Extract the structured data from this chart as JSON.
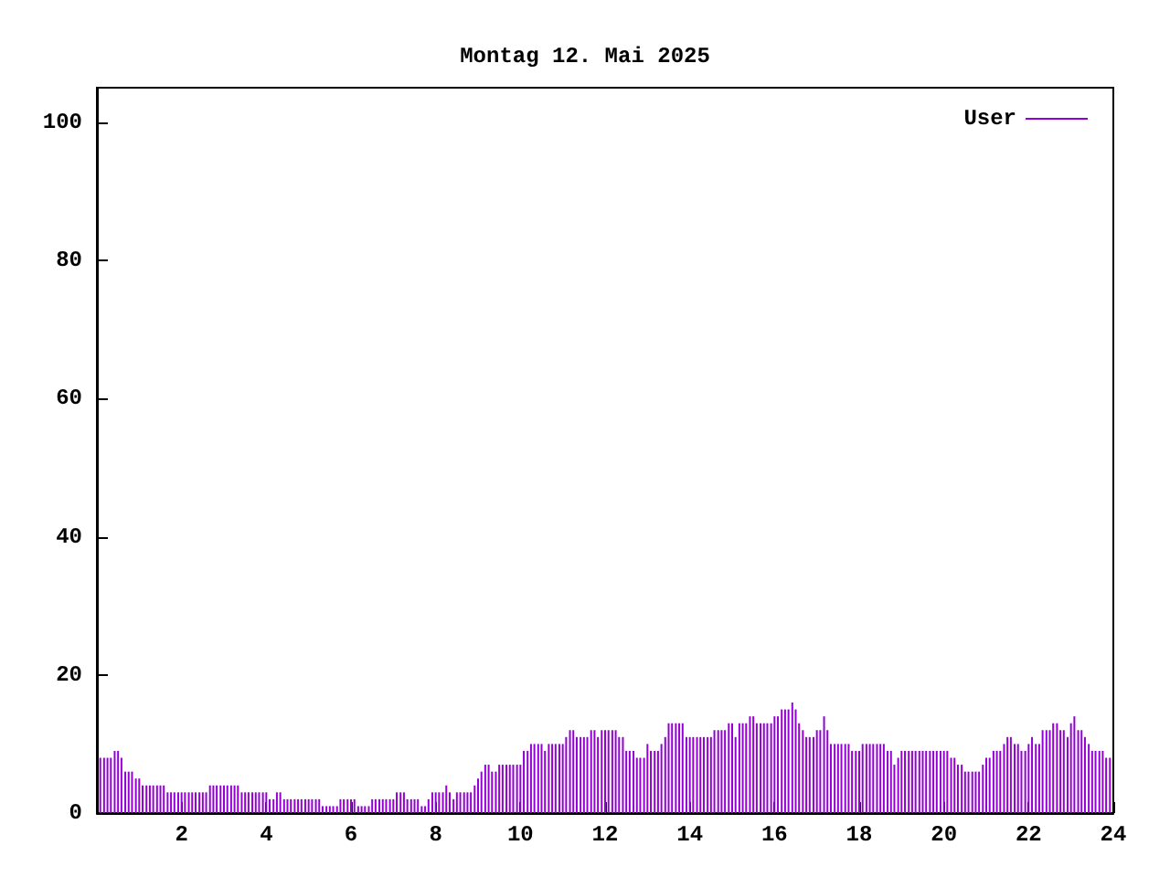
{
  "chart_data": {
    "type": "bar",
    "title": "Montag 12. Mai 2025",
    "x": [
      0.08,
      0.17,
      0.25,
      0.33,
      0.42,
      0.5,
      0.58,
      0.67,
      0.75,
      0.83,
      0.92,
      1,
      1.08,
      1.17,
      1.25,
      1.33,
      1.42,
      1.5,
      1.58,
      1.67,
      1.75,
      1.83,
      1.92,
      2,
      2.08,
      2.17,
      2.25,
      2.33,
      2.42,
      2.5,
      2.58,
      2.67,
      2.75,
      2.83,
      2.92,
      3,
      3.08,
      3.17,
      3.25,
      3.33,
      3.42,
      3.5,
      3.58,
      3.67,
      3.75,
      3.83,
      3.92,
      4,
      4.08,
      4.17,
      4.25,
      4.33,
      4.42,
      4.5,
      4.58,
      4.67,
      4.75,
      4.83,
      4.92,
      5,
      5.08,
      5.17,
      5.25,
      5.33,
      5.42,
      5.5,
      5.58,
      5.67,
      5.75,
      5.83,
      5.92,
      6,
      6.08,
      6.17,
      6.25,
      6.33,
      6.42,
      6.5,
      6.58,
      6.67,
      6.75,
      6.83,
      6.92,
      7,
      7.08,
      7.17,
      7.25,
      7.33,
      7.42,
      7.5,
      7.58,
      7.67,
      7.75,
      7.83,
      7.92,
      8,
      8.08,
      8.17,
      8.25,
      8.33,
      8.42,
      8.5,
      8.58,
      8.67,
      8.75,
      8.83,
      8.92,
      9,
      9.08,
      9.17,
      9.25,
      9.33,
      9.42,
      9.5,
      9.58,
      9.67,
      9.75,
      9.83,
      9.92,
      10,
      10.08,
      10.17,
      10.25,
      10.33,
      10.42,
      10.5,
      10.58,
      10.67,
      10.75,
      10.83,
      10.92,
      11,
      11.08,
      11.17,
      11.25,
      11.33,
      11.42,
      11.5,
      11.58,
      11.67,
      11.75,
      11.83,
      11.92,
      12,
      12.08,
      12.17,
      12.25,
      12.33,
      12.42,
      12.5,
      12.58,
      12.67,
      12.75,
      12.83,
      12.92,
      13,
      13.08,
      13.17,
      13.25,
      13.33,
      13.42,
      13.5,
      13.58,
      13.67,
      13.75,
      13.83,
      13.92,
      14,
      14.08,
      14.17,
      14.25,
      14.33,
      14.42,
      14.5,
      14.58,
      14.67,
      14.75,
      14.83,
      14.92,
      15,
      15.08,
      15.17,
      15.25,
      15.33,
      15.42,
      15.5,
      15.58,
      15.67,
      15.75,
      15.83,
      15.92,
      16,
      16.08,
      16.17,
      16.25,
      16.33,
      16.42,
      16.5,
      16.58,
      16.67,
      16.75,
      16.83,
      16.92,
      17,
      17.08,
      17.17,
      17.25,
      17.33,
      17.42,
      17.5,
      17.58,
      17.67,
      17.75,
      17.83,
      17.92,
      18,
      18.08,
      18.17,
      18.25,
      18.33,
      18.42,
      18.5,
      18.58,
      18.67,
      18.75,
      18.83,
      18.92,
      19,
      19.08,
      19.17,
      19.25,
      19.33,
      19.42,
      19.5,
      19.58,
      19.67,
      19.75,
      19.83,
      19.92,
      20,
      20.08,
      20.17,
      20.25,
      20.33,
      20.42,
      20.5,
      20.58,
      20.67,
      20.75,
      20.83,
      20.92,
      21,
      21.08,
      21.17,
      21.25,
      21.33,
      21.42,
      21.5,
      21.58,
      21.67,
      21.75,
      21.83,
      21.92,
      22,
      22.08,
      22.17,
      22.25,
      22.33,
      22.42,
      22.5,
      22.58,
      22.67,
      22.75,
      22.83,
      22.92,
      23,
      23.08,
      23.17,
      23.25,
      23.33,
      23.42,
      23.5,
      23.58,
      23.67,
      23.75,
      23.83,
      23.92
    ],
    "series": [
      {
        "name": "User",
        "color": "#9400d3",
        "values": [
          8,
          8,
          8,
          8,
          9,
          9,
          8,
          6,
          6,
          6,
          5,
          5,
          4,
          4,
          4,
          4,
          4,
          4,
          4,
          3,
          3,
          3,
          3,
          3,
          3,
          3,
          3,
          3,
          3,
          3,
          3,
          4,
          4,
          4,
          4,
          4,
          4,
          4,
          4,
          4,
          3,
          3,
          3,
          3,
          3,
          3,
          3,
          3,
          2,
          2,
          3,
          3,
          2,
          2,
          2,
          2,
          2,
          2,
          2,
          2,
          2,
          2,
          2,
          1,
          1,
          1,
          1,
          1,
          2,
          2,
          2,
          2,
          2,
          1,
          1,
          1,
          1,
          2,
          2,
          2,
          2,
          2,
          2,
          2,
          3,
          3,
          3,
          2,
          2,
          2,
          2,
          1,
          1,
          2,
          3,
          3,
          3,
          3,
          4,
          3,
          2,
          3,
          3,
          3,
          3,
          3,
          4,
          5,
          6,
          7,
          7,
          6,
          6,
          7,
          7,
          7,
          7,
          7,
          7,
          7,
          9,
          9,
          10,
          10,
          10,
          10,
          9,
          10,
          10,
          10,
          10,
          10,
          11,
          12,
          12,
          11,
          11,
          11,
          11,
          12,
          12,
          11,
          12,
          12,
          12,
          12,
          12,
          11,
          11,
          9,
          9,
          9,
          8,
          8,
          8,
          10,
          9,
          9,
          9,
          10,
          11,
          13,
          13,
          13,
          13,
          13,
          11,
          11,
          11,
          11,
          11,
          11,
          11,
          11,
          12,
          12,
          12,
          12,
          13,
          13,
          11,
          13,
          13,
          13,
          14,
          14,
          13,
          13,
          13,
          13,
          13,
          14,
          14,
          15,
          15,
          15,
          16,
          15,
          13,
          12,
          11,
          11,
          11,
          12,
          12,
          14,
          12,
          10,
          10,
          10,
          10,
          10,
          10,
          9,
          9,
          9,
          10,
          10,
          10,
          10,
          10,
          10,
          10,
          9,
          9,
          7,
          8,
          9,
          9,
          9,
          9,
          9,
          9,
          9,
          9,
          9,
          9,
          9,
          9,
          9,
          9,
          8,
          8,
          7,
          7,
          6,
          6,
          6,
          6,
          6,
          7,
          8,
          8,
          9,
          9,
          9,
          10,
          11,
          11,
          10,
          10,
          9,
          9,
          10,
          11,
          10,
          10,
          12,
          12,
          12,
          13,
          13,
          12,
          12,
          11,
          13,
          14,
          12,
          12,
          11,
          10,
          9,
          9,
          9,
          9,
          8,
          8
        ]
      }
    ],
    "xlim": [
      0,
      24
    ],
    "xticks": [
      2,
      4,
      6,
      8,
      10,
      12,
      14,
      16,
      18,
      20,
      22,
      24
    ],
    "ylim": [
      0,
      105
    ],
    "yticks": [
      0,
      20,
      40,
      60,
      80,
      100
    ],
    "grid": false,
    "legend": "top right"
  }
}
